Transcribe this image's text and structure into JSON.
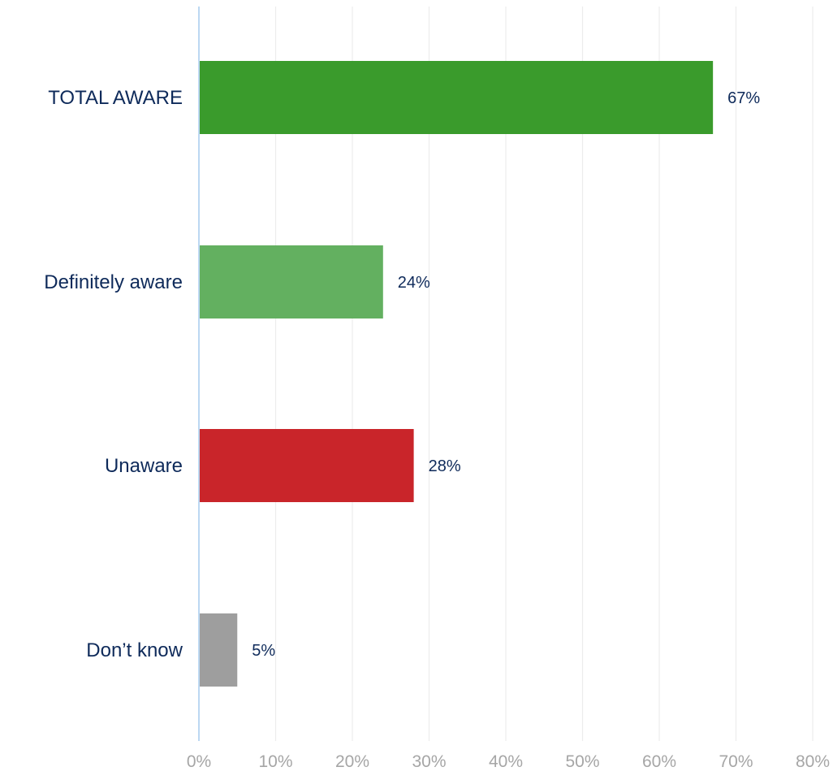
{
  "chart_data": {
    "type": "bar",
    "orientation": "horizontal",
    "title": "",
    "xlabel": "",
    "ylabel": "",
    "categories": [
      "TOTAL AWARE",
      "Definitely aware",
      "Unaware",
      "Don’t know"
    ],
    "values": [
      67,
      24,
      28,
      5
    ],
    "value_labels": [
      "67%",
      "24%",
      "28%",
      "5%"
    ],
    "bar_colors": [
      "#3a9b2c",
      "#63b060",
      "#c9252a",
      "#9e9e9e"
    ],
    "xlim": [
      0,
      80
    ],
    "x_ticks": [
      0,
      10,
      20,
      30,
      40,
      50,
      60,
      70,
      80
    ],
    "x_tick_labels": [
      "0%",
      "10%",
      "20%",
      "30%",
      "40%",
      "50%",
      "60%",
      "70%",
      "80%"
    ],
    "grid": true,
    "legend": "none"
  },
  "colors": {
    "category_text": "#0e2a5a",
    "value_text": "#0e2a5a",
    "tick_text": "#a6a6a6",
    "gridline": "#ececec",
    "axis_line": "#bcd8f2"
  }
}
